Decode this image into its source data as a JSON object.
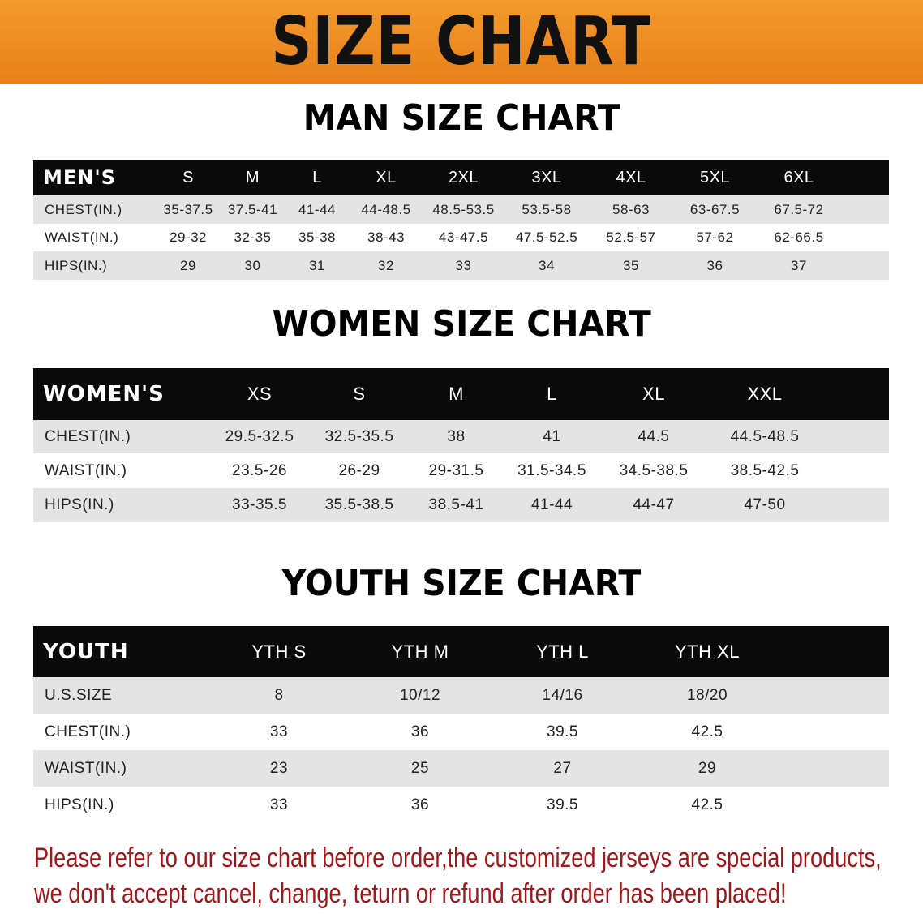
{
  "banner_title": "SIZE CHART",
  "men": {
    "title": "MAN SIZE CHART",
    "header": [
      "MEN'S",
      "S",
      "M",
      "L",
      "XL",
      "2XL",
      "3XL",
      "4XL",
      "5XL",
      "6XL"
    ],
    "rows": [
      [
        "CHEST(IN.)",
        "35-37.5",
        "37.5-41",
        "41-44",
        "44-48.5",
        "48.5-53.5",
        "53.5-58",
        "58-63",
        "63-67.5",
        "67.5-72"
      ],
      [
        "WAIST(IN.)",
        "29-32",
        "32-35",
        "35-38",
        "38-43",
        "43-47.5",
        "47.5-52.5",
        "52.5-57",
        "57-62",
        "62-66.5"
      ],
      [
        "HIPS(IN.)",
        "29",
        "30",
        "31",
        "32",
        "33",
        "34",
        "35",
        "36",
        "37"
      ]
    ]
  },
  "women": {
    "title": "WOMEN SIZE CHART",
    "header": [
      "WOMEN'S",
      "XS",
      "S",
      "M",
      "L",
      "XL",
      "XXL"
    ],
    "rows": [
      [
        "CHEST(IN.)",
        "29.5-32.5",
        "32.5-35.5",
        "38",
        "41",
        "44.5",
        "44.5-48.5"
      ],
      [
        "WAIST(IN.)",
        "23.5-26",
        "26-29",
        "29-31.5",
        "31.5-34.5",
        "34.5-38.5",
        "38.5-42.5"
      ],
      [
        "HIPS(IN.)",
        "33-35.5",
        "35.5-38.5",
        "38.5-41",
        "41-44",
        "44-47",
        "47-50"
      ]
    ]
  },
  "youth": {
    "title": "YOUTH SIZE CHART",
    "header": [
      "YOUTH",
      "YTH S",
      "YTH M",
      "YTH L",
      "YTH XL"
    ],
    "rows": [
      [
        "U.S.SIZE",
        "8",
        "10/12",
        "14/16",
        "18/20"
      ],
      [
        "CHEST(IN.)",
        "33",
        "36",
        "39.5",
        "42.5"
      ],
      [
        "WAIST(IN.)",
        "23",
        "25",
        "27",
        "29"
      ],
      [
        "HIPS(IN.)",
        "33",
        "36",
        "39.5",
        "42.5"
      ]
    ]
  },
  "notice": {
    "line1": "Please refer to our size chart before order,the customized jerseys are special products,",
    "line2": "we don't accept cancel, change, teturn or refund after order has been placed!"
  },
  "colors": {
    "banner": "#ee8a22",
    "header_row": "#0a0a0a",
    "stripe": "#e4e4e4",
    "notice": "#a3161a"
  }
}
